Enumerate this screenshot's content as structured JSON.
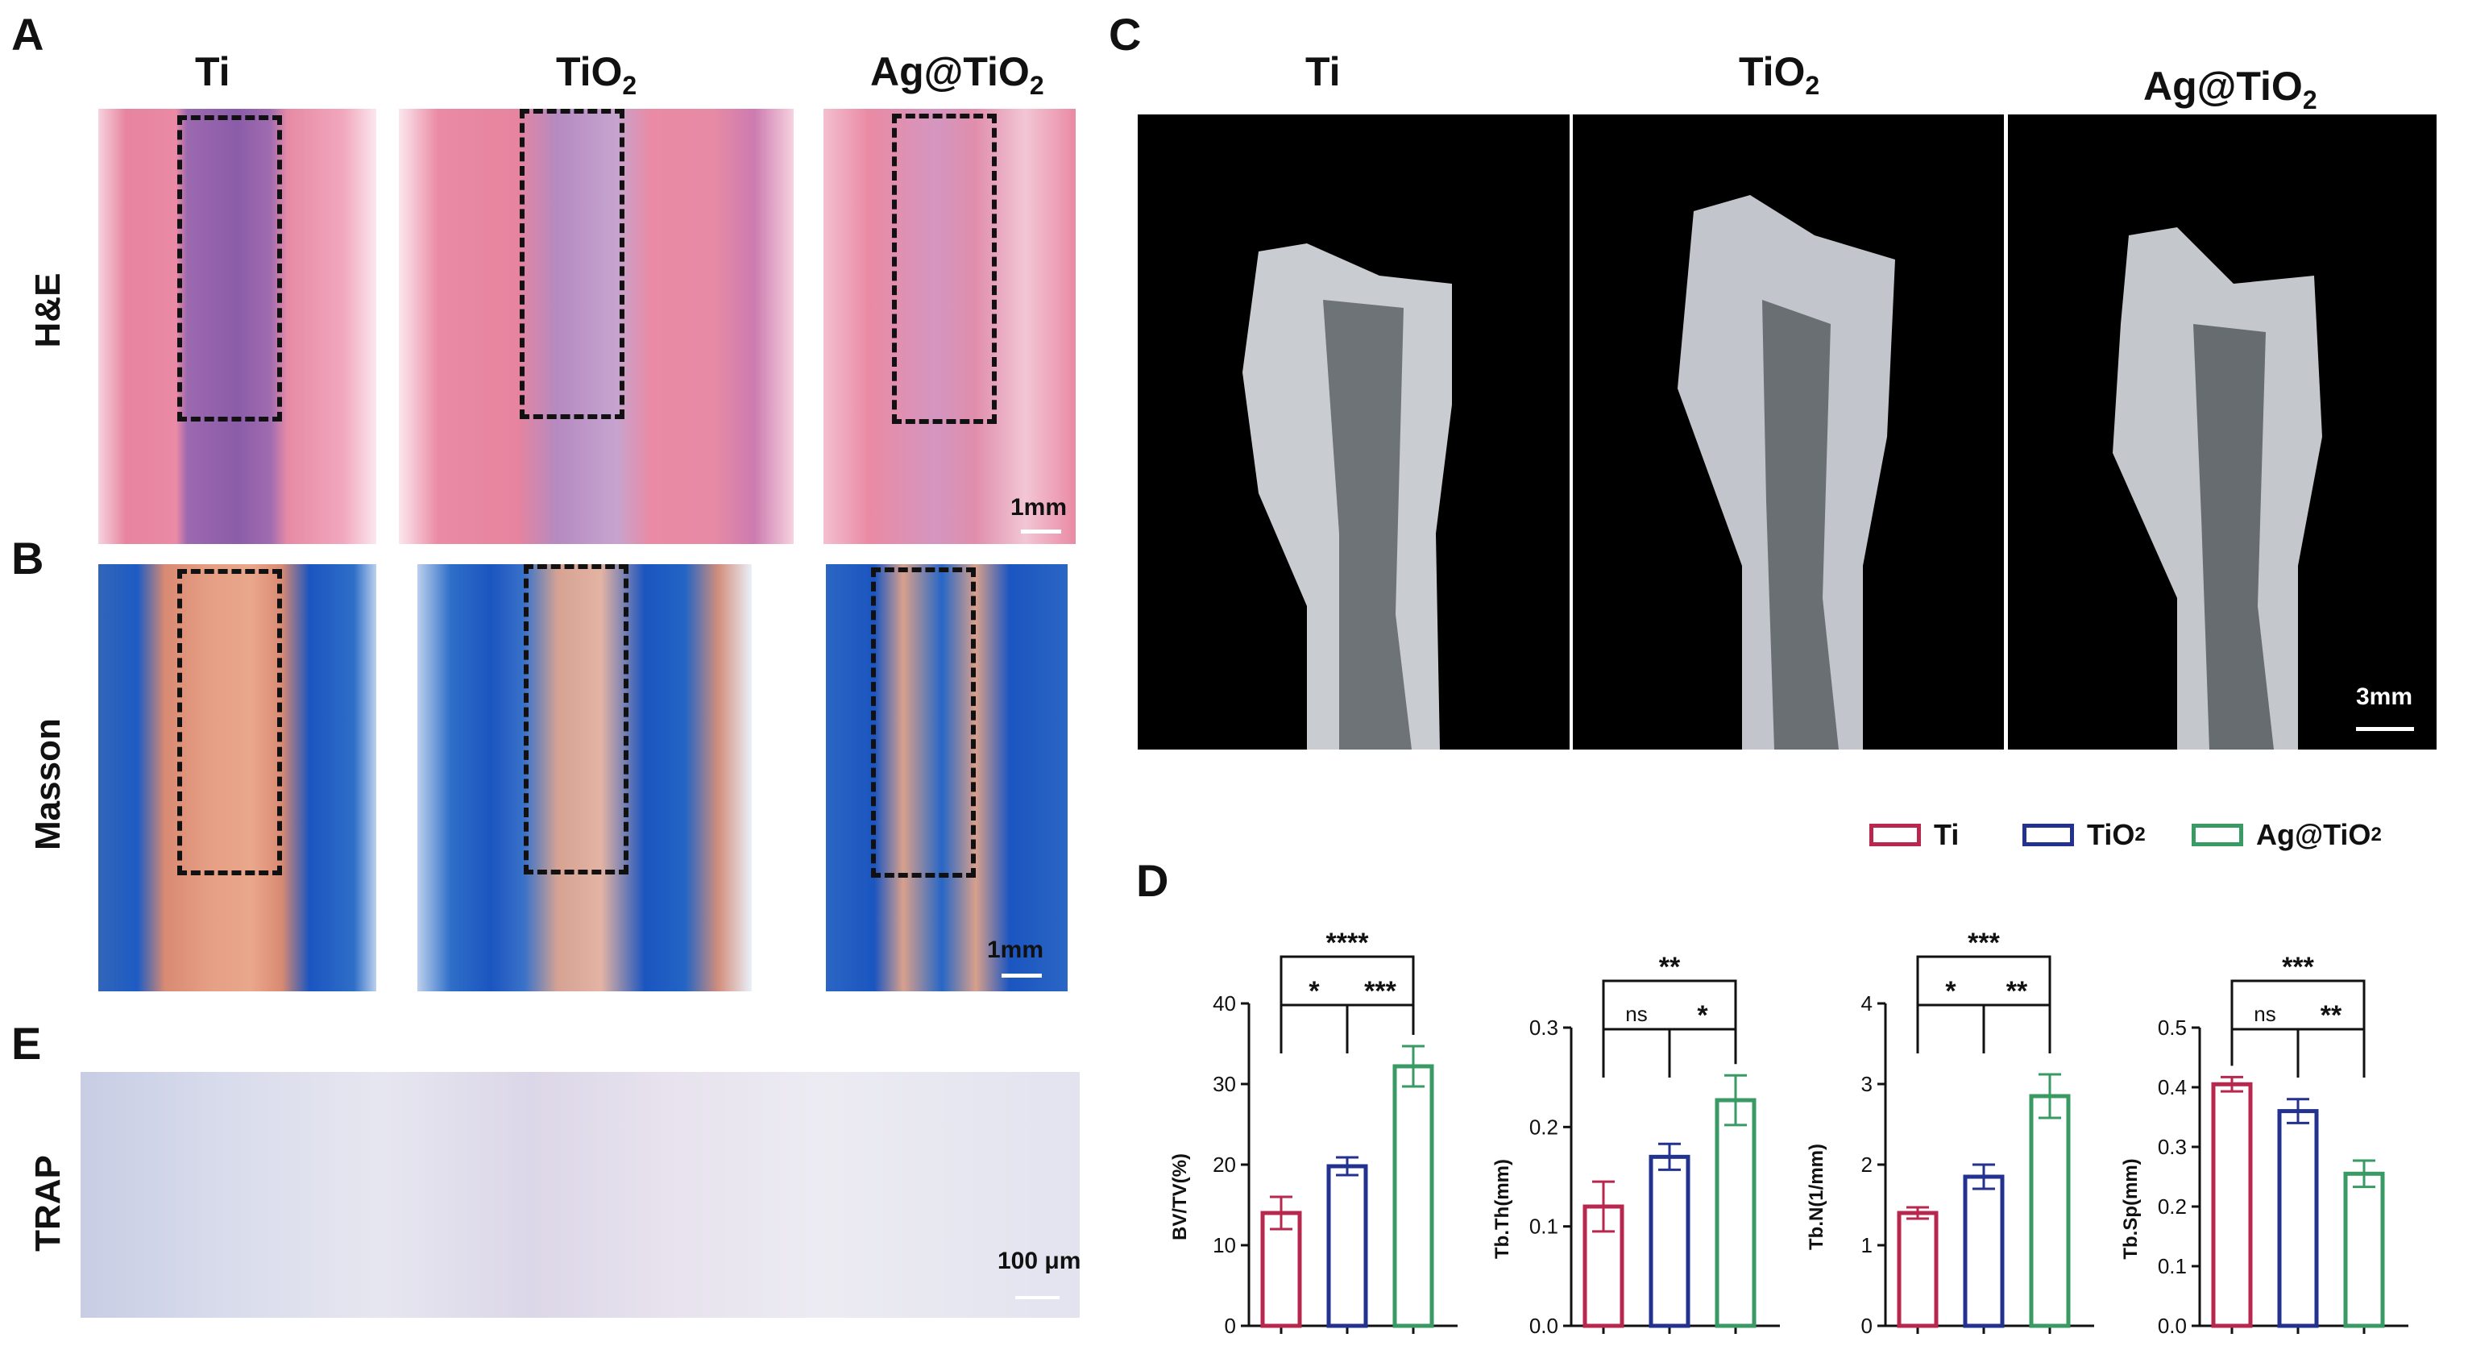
{
  "panels": {
    "A": "A",
    "B": "B",
    "C": "C",
    "D": "D",
    "E": "E"
  },
  "columns_AB": [
    "Ti",
    "TiO",
    "Ag@TiO"
  ],
  "columns_C": [
    "Ti",
    "TiO",
    "Ag@TiO"
  ],
  "subscript_2": "2",
  "rows": {
    "he": "H&E",
    "masson": "Masson",
    "trap": "TRAP"
  },
  "scalebars": {
    "he": "1mm",
    "masson": "1mm",
    "ct": "3mm",
    "trap": "100 μm"
  },
  "colors": {
    "Ti": "#b8274d",
    "TiO2": "#23318f",
    "Ag@TiO2": "#3a9a63"
  },
  "legend": [
    {
      "label": "Ti",
      "sub": ""
    },
    {
      "label": "TiO",
      "sub": "2"
    },
    {
      "label": "Ag@TiO",
      "sub": "2"
    }
  ],
  "chart_data": [
    {
      "type": "bar",
      "categories": [
        "Ti",
        "TiO2",
        "Ag@TiO2"
      ],
      "values": [
        14,
        19.8,
        32.2
      ],
      "errors": [
        2,
        1.1,
        2.5
      ],
      "ylabel": "BV/TV(%)",
      "ylim": [
        0,
        40
      ],
      "yticks": [
        0,
        10,
        20,
        30,
        40
      ],
      "brackets": [
        {
          "from": 0,
          "to": 1,
          "label": "*",
          "level": 1
        },
        {
          "from": 1,
          "to": 2,
          "label": "***",
          "level": 1
        },
        {
          "from": 0,
          "to": 2,
          "label": "****",
          "level": 2
        }
      ]
    },
    {
      "type": "bar",
      "categories": [
        "Ti",
        "TiO2",
        "Ag@TiO2"
      ],
      "values": [
        0.12,
        0.17,
        0.227
      ],
      "errors": [
        0.025,
        0.013,
        0.025
      ],
      "ylabel": "Tb.Th(mm)",
      "ylim": [
        0,
        0.3
      ],
      "yticks": [
        0.0,
        0.1,
        0.2,
        0.3
      ],
      "brackets": [
        {
          "from": 0,
          "to": 1,
          "label": "ns",
          "level": 1
        },
        {
          "from": 1,
          "to": 2,
          "label": "*",
          "level": 1
        },
        {
          "from": 0,
          "to": 2,
          "label": "**",
          "level": 2
        }
      ]
    },
    {
      "type": "bar",
      "categories": [
        "Ti",
        "TiO2",
        "Ag@TiO2"
      ],
      "values": [
        1.4,
        1.85,
        2.85
      ],
      "errors": [
        0.07,
        0.15,
        0.27
      ],
      "ylabel": "Tb.N(1/mm)",
      "ylim": [
        0,
        4
      ],
      "yticks": [
        0,
        1,
        2,
        3,
        4
      ],
      "brackets": [
        {
          "from": 0,
          "to": 1,
          "label": "*",
          "level": 1
        },
        {
          "from": 1,
          "to": 2,
          "label": "**",
          "level": 1
        },
        {
          "from": 0,
          "to": 2,
          "label": "***",
          "level": 2
        }
      ]
    },
    {
      "type": "bar",
      "categories": [
        "Ti",
        "TiO2",
        "Ag@TiO2"
      ],
      "values": [
        0.405,
        0.36,
        0.255
      ],
      "errors": [
        0.012,
        0.02,
        0.022
      ],
      "ylabel": "Tb.Sp(mm)",
      "ylim": [
        0,
        0.5
      ],
      "yticks": [
        0.0,
        0.1,
        0.2,
        0.3,
        0.4,
        0.5
      ],
      "brackets": [
        {
          "from": 0,
          "to": 1,
          "label": "ns",
          "level": 1
        },
        {
          "from": 1,
          "to": 2,
          "label": "**",
          "level": 1
        },
        {
          "from": 0,
          "to": 2,
          "label": "***",
          "level": 2
        }
      ]
    }
  ]
}
